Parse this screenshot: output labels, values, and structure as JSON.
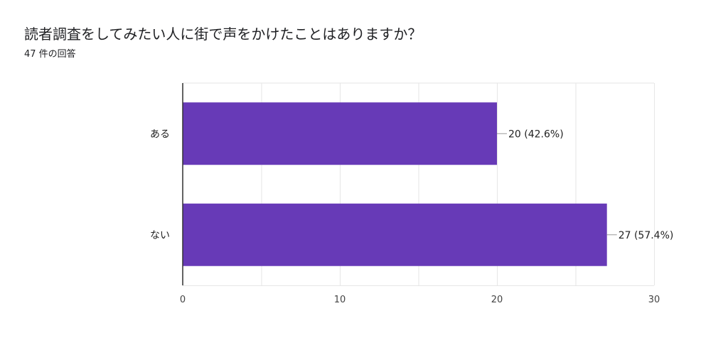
{
  "header": {
    "question": "読者調査をしてみたい人に街で声をかけたことはありますか？",
    "response_count": "47 件の回答"
  },
  "colors": {
    "bar": "#673AB7",
    "grid": "#E6E6E6",
    "axis": "#333333",
    "connector": "#999999"
  },
  "chart_data": {
    "type": "bar",
    "orientation": "horizontal",
    "title": "",
    "xlabel": "",
    "ylabel": "",
    "categories": [
      "ある",
      "ない"
    ],
    "values": [
      20,
      27
    ],
    "data_labels": [
      "20 (42.6%)",
      "27 (57.4%)"
    ],
    "xlim": [
      0,
      30
    ],
    "x_ticks": [
      0,
      10,
      20,
      30
    ],
    "grid": true,
    "legend": "none"
  }
}
